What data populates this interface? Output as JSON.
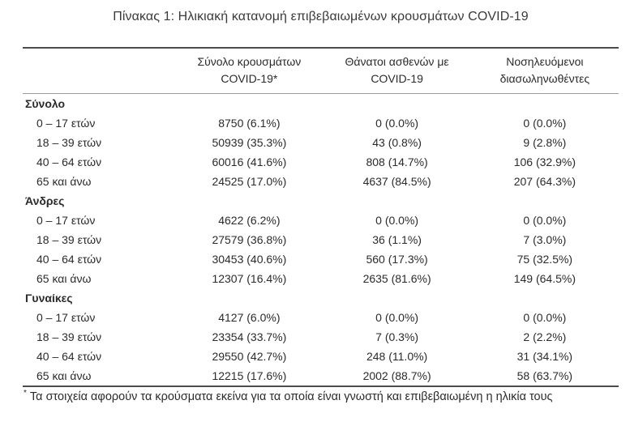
{
  "page": {
    "title": "Πίνακας 1: Ηλικιακή κατανομή επιβεβαιωμένων κρουσμάτων COVID-19",
    "footnote_marker": "*",
    "footnote": "Τα στοιχεία αφορούν τα κρούσματα εκείνα για τα οποία είναι γνωστή και επιβεβαιωμένη η ηλικία τους"
  },
  "colors": {
    "text": "#2b2b2b",
    "rule_heavy": "#4b4b4b",
    "rule_light": "#9b9b9b",
    "background": "#ffffff"
  },
  "table": {
    "col_headers": [
      {
        "line1": "Σύνολο κρουσμάτων",
        "line2": "COVID-19*"
      },
      {
        "line1": "Θάνατοι ασθενών με",
        "line2": "COVID-19"
      },
      {
        "line1": "Νοσηλευόμενοι",
        "line2": "διασωληνωθέντες"
      }
    ],
    "sections": [
      {
        "name": "Σύνολο",
        "rows": [
          {
            "label": "0 – 17 ετών",
            "cases": "8750 (6.1%)",
            "deaths": "0 (0.0%)",
            "intubated": "0 (0.0%)"
          },
          {
            "label": "18 – 39 ετών",
            "cases": "50939 (35.3%)",
            "deaths": "43 (0.8%)",
            "intubated": "9 (2.8%)"
          },
          {
            "label": "40 – 64 ετών",
            "cases": "60016 (41.6%)",
            "deaths": "808 (14.7%)",
            "intubated": "106 (32.9%)"
          },
          {
            "label": "65 και άνω",
            "cases": "24525 (17.0%)",
            "deaths": "4637 (84.5%)",
            "intubated": "207 (64.3%)"
          }
        ]
      },
      {
        "name": "Άνδρες",
        "rows": [
          {
            "label": "0 – 17 ετών",
            "cases": "4622 (6.2%)",
            "deaths": "0 (0.0%)",
            "intubated": "0 (0.0%)"
          },
          {
            "label": "18 – 39 ετών",
            "cases": "27579 (36.8%)",
            "deaths": "36 (1.1%)",
            "intubated": "7 (3.0%)"
          },
          {
            "label": "40 – 64 ετών",
            "cases": "30453 (40.6%)",
            "deaths": "560 (17.3%)",
            "intubated": "75 (32.5%)"
          },
          {
            "label": "65 και άνω",
            "cases": "12307 (16.4%)",
            "deaths": "2635 (81.6%)",
            "intubated": "149 (64.5%)"
          }
        ]
      },
      {
        "name": "Γυναίκες",
        "rows": [
          {
            "label": "0 – 17 ετών",
            "cases": "4127 (6.0%)",
            "deaths": "0 (0.0%)",
            "intubated": "0 (0.0%)"
          },
          {
            "label": "18 – 39 ετών",
            "cases": "23354 (33.7%)",
            "deaths": "7 (0.3%)",
            "intubated": "2 (2.2%)"
          },
          {
            "label": "40 – 64 ετών",
            "cases": "29550 (42.7%)",
            "deaths": "248 (11.0%)",
            "intubated": "31 (34.1%)"
          },
          {
            "label": "65 και άνω",
            "cases": "12215 (17.6%)",
            "deaths": "2002 (88.7%)",
            "intubated": "58 (63.7%)"
          }
        ]
      }
    ]
  }
}
